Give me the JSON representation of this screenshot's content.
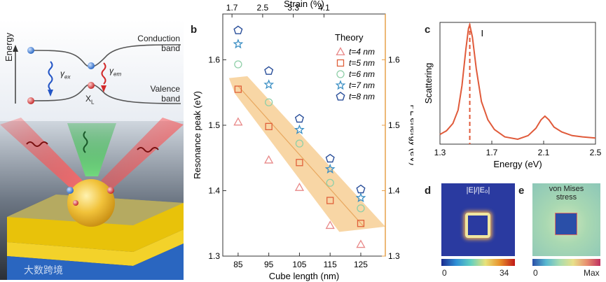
{
  "panels": {
    "a": {
      "label": "a",
      "energy_axis": "Energy",
      "conduction": "Conduction",
      "conduction2": "band",
      "valence": "Valence",
      "valence2": "band",
      "gamma_ex": "γ",
      "gamma_ex_sub": "ex",
      "gamma_em": "γ",
      "gamma_em_sub": "em",
      "xl": "X",
      "xl_sub": "L",
      "watermark": "大数跨境"
    },
    "b": {
      "label": "b"
    },
    "c": {
      "label": "c"
    },
    "d": {
      "label": "d",
      "title": "|E|/|E₀|",
      "cbar_min": "0",
      "cbar_max": "34"
    },
    "e": {
      "label": "e",
      "title1": "von Mises",
      "title2": "stress",
      "cbar_min": "0",
      "cbar_max": "Max"
    }
  },
  "chart_data": [
    {
      "type": "scatter",
      "xlabel": "Cube length (nm)",
      "ylabel": "Resonance peak (eV)",
      "y2label": "PL energy (eV)",
      "x2label": "Strain (%)",
      "xlim": [
        80,
        133
      ],
      "ylim": [
        1.3,
        1.67
      ],
      "xticks": [
        "85",
        "95",
        "105",
        "115",
        "125"
      ],
      "yticks": [
        "1.3",
        "1.4",
        "1.5",
        "1.6"
      ],
      "y2ticks": [
        "1.3",
        "1.4",
        "1.5",
        "1.6"
      ],
      "x2ticks": [
        "1.7",
        "2.5",
        "3.3",
        "4.1"
      ],
      "legend_title": "Theory",
      "x": [
        85,
        95,
        105,
        115,
        125
      ],
      "series": [
        {
          "name": "t=4 nm",
          "marker": "triangle",
          "color": "#e88888",
          "values": [
            1.505,
            1.447,
            1.405,
            1.347,
            1.318
          ]
        },
        {
          "name": "t=5 nm",
          "marker": "square",
          "color": "#e0603a",
          "values": [
            1.555,
            1.498,
            1.443,
            1.385,
            1.35
          ]
        },
        {
          "name": "t=6 nm",
          "marker": "circle",
          "color": "#8fcfa8",
          "values": [
            1.593,
            1.535,
            1.472,
            1.412,
            1.373
          ]
        },
        {
          "name": "t=7 nm",
          "marker": "star",
          "color": "#3b8fc4",
          "values": [
            1.624,
            1.562,
            1.493,
            1.433,
            1.389
          ]
        },
        {
          "name": "t=8 nm",
          "marker": "pentagon",
          "color": "#2a4f9a",
          "values": [
            1.645,
            1.583,
            1.51,
            1.449,
            1.402
          ]
        }
      ],
      "band_color": "#f5c887"
    },
    {
      "type": "line",
      "ylabel": "Scattering",
      "xlabel": "Energy (eV)",
      "xticks": [
        "1.3",
        "1.7",
        "2.1",
        "2.5"
      ],
      "xlim": [
        1.3,
        2.5
      ],
      "color": "#e05a3a",
      "peak_marker_x": 1.53,
      "cursor_glyph": "I",
      "x": [
        1.3,
        1.35,
        1.4,
        1.44,
        1.47,
        1.5,
        1.52,
        1.53,
        1.55,
        1.58,
        1.62,
        1.67,
        1.72,
        1.8,
        1.9,
        1.98,
        2.04,
        2.08,
        2.11,
        2.14,
        2.18,
        2.24,
        2.32,
        2.4,
        2.5
      ],
      "y": [
        0.08,
        0.11,
        0.17,
        0.28,
        0.48,
        0.78,
        0.95,
        0.98,
        0.88,
        0.62,
        0.35,
        0.2,
        0.12,
        0.06,
        0.04,
        0.07,
        0.13,
        0.2,
        0.23,
        0.2,
        0.14,
        0.1,
        0.07,
        0.06,
        0.05
      ]
    }
  ],
  "colors": {
    "orange": "#e06a3a",
    "blue_gold": "#1f5fa8"
  }
}
